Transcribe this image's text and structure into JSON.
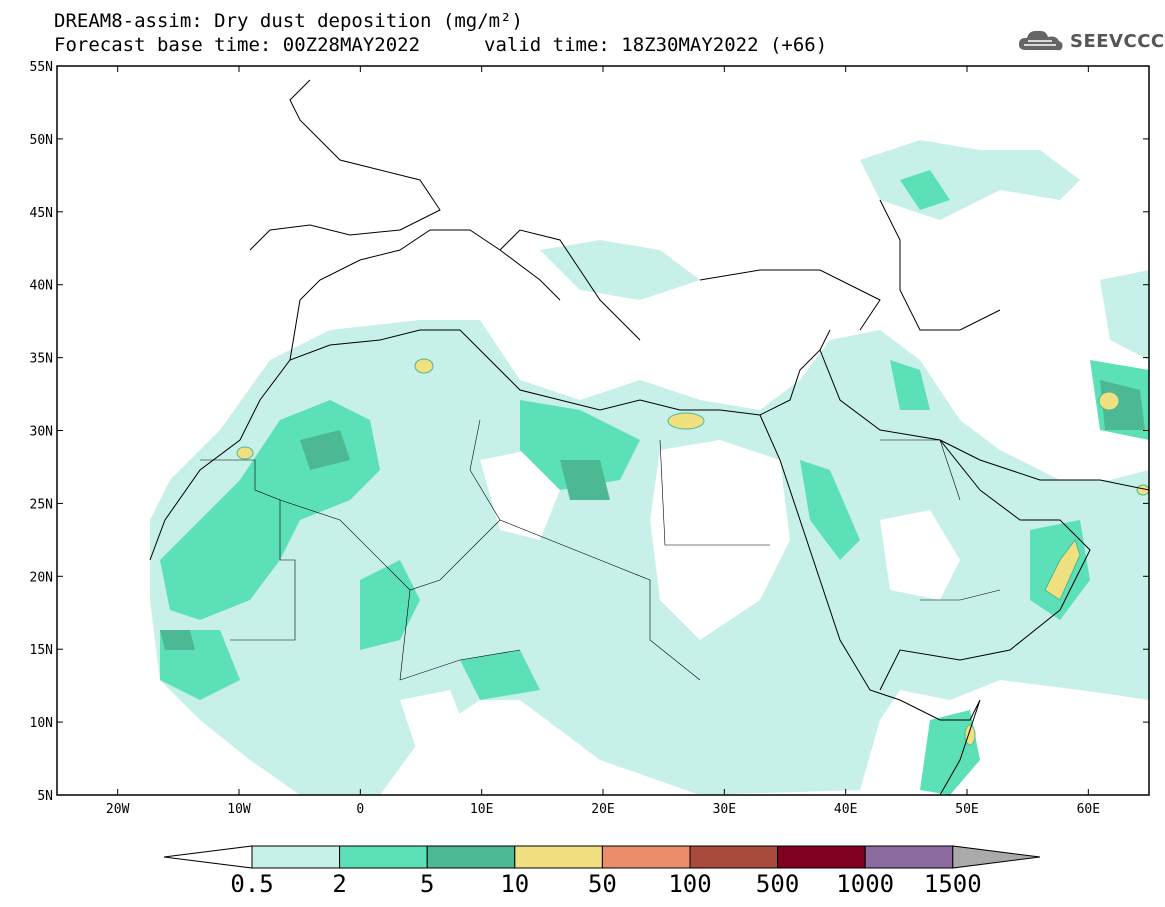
{
  "header": {
    "title_line1": "DREAM8-assim: Dry dust deposition (mg/m²)",
    "title_line2": "Forecast base time: 00Z28MAY2022",
    "valid_time": "valid time: 18Z30MAY2022 (+66)",
    "logo_text": "SEEVCCC",
    "logo_icon": "cloud-icon"
  },
  "map": {
    "lon_ticks": [
      "20W",
      "10W",
      "0",
      "10E",
      "20E",
      "30E",
      "40E",
      "50E",
      "60E"
    ],
    "lat_ticks": [
      "55N",
      "50N",
      "45N",
      "40N",
      "35N",
      "30N",
      "25N",
      "20N",
      "15N",
      "10N",
      "5N"
    ],
    "extent": {
      "lon_min": -25,
      "lon_max": 65,
      "lat_min": 5,
      "lat_max": 55
    }
  },
  "colorbar": {
    "labels": [
      "0.5",
      "2",
      "5",
      "10",
      "50",
      "100",
      "500",
      "1000",
      "1500"
    ],
    "colors": [
      "#c6f0e8",
      "#5ce0b8",
      "#4db894",
      "#f0e080",
      "#eb8c6a",
      "#a84a3c",
      "#800020",
      "#8c6aa0"
    ],
    "under_color": "#ffffff",
    "over_color": "#aaaaaa"
  }
}
